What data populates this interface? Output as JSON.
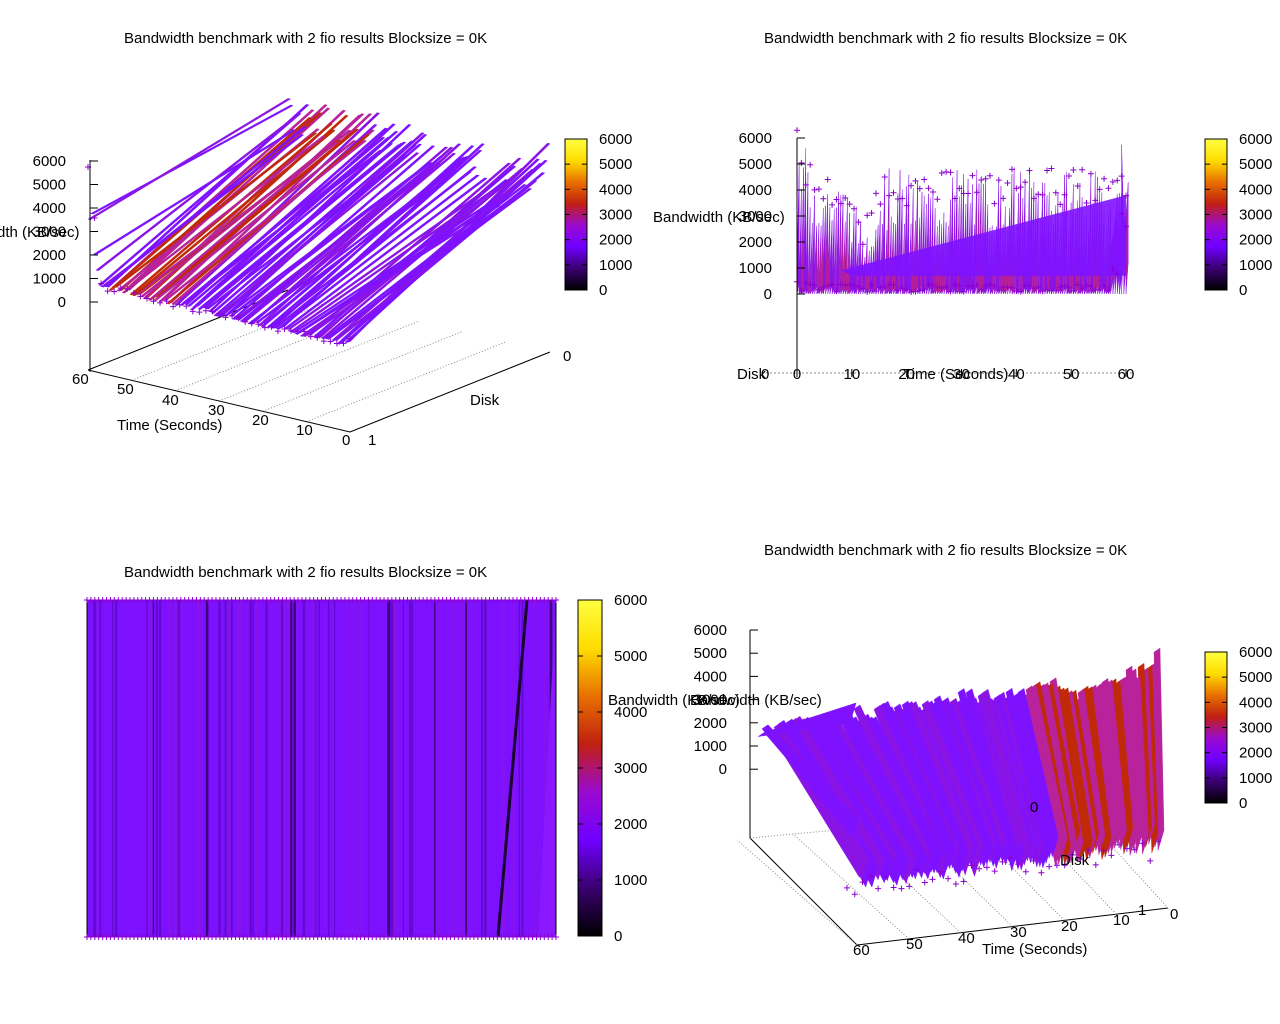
{
  "colors": {
    "palette": [
      "#000000",
      "#3a0070",
      "#7000ff",
      "#9a0ad0",
      "#c02010",
      "#e87000",
      "#ffdd00",
      "#ffff40"
    ],
    "axis": "#000000",
    "surface_main": "#7e12ff",
    "surface_spike": "#8a14e6",
    "surface_peak": "#b8229a",
    "surface_hot": "#c02a08",
    "marker": "#8a00d0"
  },
  "panels": [
    {
      "id": "top-left",
      "view": "3d-left",
      "title": "Bandwidth benchmark with 2 fio results  Blocksize = 0K",
      "zlabel": "Bandwidth (KB/sec)",
      "zlabel_visible": "dth (KB/sec)",
      "xlabel": "Time (Seconds)",
      "ylabel": "Disk",
      "zticks": [
        "6000",
        "5000",
        "4000",
        "3000",
        "2000",
        "1000",
        "0"
      ],
      "xticks": [
        "60",
        "50",
        "40",
        "30",
        "20",
        "10",
        "0"
      ],
      "yticks": [
        "0",
        "1"
      ],
      "cbticks": [
        "6000",
        "5000",
        "4000",
        "3000",
        "2000",
        "1000",
        "0"
      ]
    },
    {
      "id": "top-right",
      "view": "2d-side",
      "title": "Bandwidth benchmark with 2 fio results  Blocksize = 0K",
      "zlabel": "Bandwidth (KB/sec)",
      "xlabel": "Time (Seconds)",
      "ylabel": "Disk",
      "zticks": [
        "6000",
        "5000",
        "4000",
        "3000",
        "2000",
        "1000",
        "0"
      ],
      "xticks": [
        "0",
        "10",
        "20",
        "30",
        "40",
        "50",
        "60"
      ],
      "yticks": [
        "0"
      ],
      "cbticks": [
        "6000",
        "5000",
        "4000",
        "3000",
        "2000",
        "1000",
        "0"
      ]
    },
    {
      "id": "bottom-left",
      "view": "map",
      "title": "Bandwidth benchmark with 2 fio results  Blocksize = 0K",
      "zlabel": "Bandwidth (KB/sec)",
      "cbticks": [
        "6000",
        "5000",
        "4000",
        "3000",
        "2000",
        "1000",
        "0"
      ]
    },
    {
      "id": "bottom-right",
      "view": "3d-right",
      "title": "Bandwidth benchmark with 2 fio results  Blocksize = 0K",
      "zlabel": "Bandwidth (KB/sec)",
      "xlabel": "Time (Seconds)",
      "ylabel": "Disk",
      "zticks": [
        "6000",
        "5000",
        "4000",
        "3000",
        "2000",
        "1000",
        "0"
      ],
      "xticks": [
        "60",
        "50",
        "40",
        "30",
        "20",
        "10",
        "0"
      ],
      "yticks": [
        "0",
        "1"
      ],
      "cbticks": [
        "6000",
        "5000",
        "4000",
        "3000",
        "2000",
        "1000",
        "0"
      ]
    }
  ],
  "chart_data": {
    "type": "surface",
    "title": "Bandwidth benchmark with 2 fio results  Blocksize = 0K",
    "xlabel": "Time (Seconds)",
    "ylabel": "Disk",
    "zlabel": "Bandwidth (KB/sec)",
    "xlim": [
      0,
      60
    ],
    "ylim": [
      0,
      1
    ],
    "zlim": [
      0,
      6000
    ],
    "colorbar_range": [
      0,
      6000
    ],
    "legend": "none",
    "grid": true,
    "series": [
      {
        "disk": 0,
        "x": [
          0,
          3,
          6,
          9,
          12,
          15,
          18,
          21,
          24,
          27,
          30,
          33,
          36,
          39,
          42,
          45,
          48,
          51,
          54,
          57,
          60
        ],
        "values": [
          5800,
          4400,
          4100,
          3900,
          2200,
          4300,
          4500,
          4100,
          4000,
          4300,
          4700,
          4300,
          4200,
          4500,
          4400,
          4600,
          4300,
          4400,
          4300,
          4100,
          4500
        ]
      },
      {
        "disk": 1,
        "x": [
          0,
          3,
          6,
          9,
          12,
          15,
          18,
          21,
          24,
          27,
          30,
          33,
          36,
          39,
          42,
          45,
          48,
          51,
          54,
          57,
          60
        ],
        "values": [
          400,
          300,
          350,
          300,
          250,
          300,
          280,
          260,
          300,
          320,
          280,
          300,
          290,
          310,
          280,
          300,
          270,
          300,
          290,
          300,
          3800
        ]
      }
    ]
  }
}
